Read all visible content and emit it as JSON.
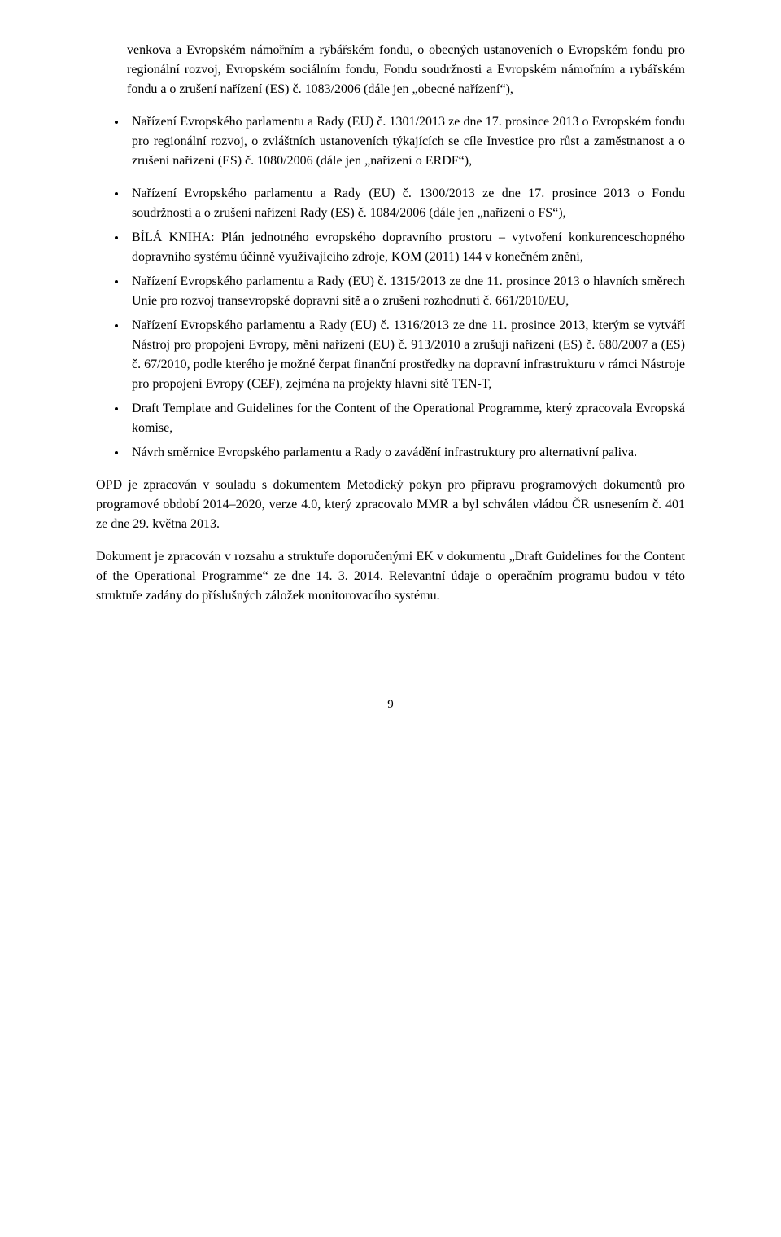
{
  "lead_in_para": "venkova a Evropském námořním a rybářském fondu, o obecných ustanoveních o Evropském fondu pro regionální rozvoj, Evropském sociálním fondu, Fondu soudržnosti a Evropském námořním a rybářském fondu a o zrušení nařízení (ES) č. 1083/2006 (dále jen „obecné nařízení“),",
  "top_bullet_1": "Nařízení Evropského parlamentu a Rady (EU) č. 1301/2013 ze dne 17. prosince 2013 o Evropském fondu pro regionální rozvoj, o zvláštních ustanoveních týkajících se cíle Investice pro růst a zaměstnanost a o zrušení nařízení (ES) č. 1080/2006 (dále jen „nařízení o ERDF“),",
  "bullets": [
    "Nařízení Evropského parlamentu a Rady (EU) č. 1300/2013 ze dne 17. prosince 2013 o Fondu soudržnosti a o zrušení nařízení Rady (ES) č. 1084/2006 (dále jen „nařízení o FS“),",
    "BÍLÁ KNIHA: Plán jednotného evropského dopravního prostoru – vytvoření konkurenceschopného dopravního systému účinně využívajícího zdroje, KOM (2011) 144 v konečném znění,",
    "Nařízení Evropského parlamentu a Rady (EU) č. 1315/2013 ze dne 11. prosince 2013 o hlavních směrech Unie pro rozvoj transevropské dopravní sítě a o zrušení rozhodnutí č. 661/2010/EU,",
    "Nařízení Evropského parlamentu a Rady (EU) č. 1316/2013 ze dne 11. prosince 2013, kterým se vytváří Nástroj pro propojení Evropy, mění nařízení (EU) č. 913/2010 a zrušují nařízení (ES) č. 680/2007 a (ES) č. 67/2010, podle kterého je možné čerpat finanční prostředky na dopravní infrastrukturu v rámci Nástroje pro propojení Evropy (CEF), zejména na projekty hlavní sítě TEN-T,",
    "Draft Template and Guidelines for the Content of the Operational Programme, který zpracovala Evropská komise,",
    "Návrh směrnice Evropského parlamentu a Rady o zavádění infrastruktury pro alternativní paliva."
  ],
  "para_1": "OPD je zpracován v souladu s dokumentem Metodický pokyn pro přípravu programových dokumentů pro programové období 2014–2020, verze 4.0, který zpracovalo MMR a byl schválen vládou ČR usnesením č. 401 ze dne 29. května 2013.",
  "para_2": "Dokument je zpracován v rozsahu a struktuře doporučenými EK v dokumentu „Draft Guidelines for the Content of the Operational Programme“ ze dne 14. 3. 2014. Relevantní údaje o operačním programu budou v této struktuře zadány do příslušných záložek monitorovacího systému.",
  "page_number": "9"
}
